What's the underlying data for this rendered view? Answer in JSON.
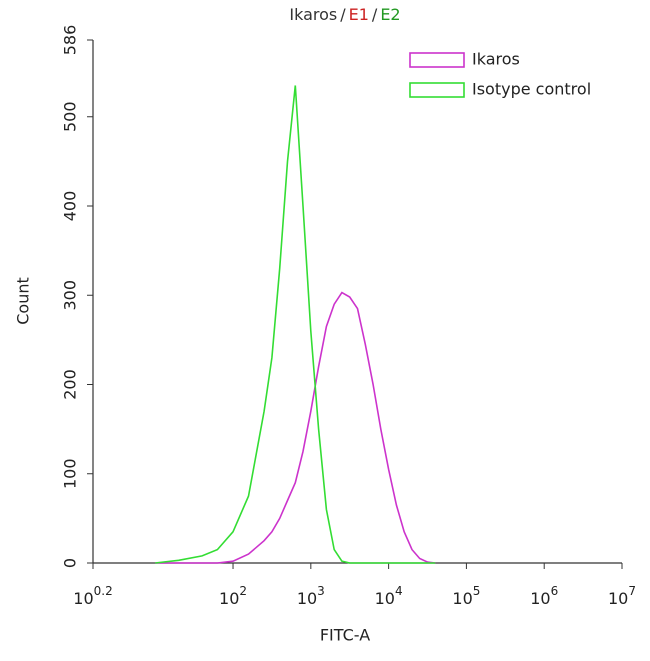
{
  "chart_data": {
    "type": "line",
    "title": [
      {
        "text": "Ikaros",
        "color": "#333333"
      },
      {
        "text": "/",
        "color": "#333333"
      },
      {
        "text": "E1",
        "color": "#cc2222"
      },
      {
        "text": "/",
        "color": "#333333"
      },
      {
        "text": "E2",
        "color": "#229922"
      }
    ],
    "x_label": "FITC-A",
    "y_label": "Count",
    "x_scale": "log",
    "x": [
      10,
      20,
      40,
      63,
      100,
      158,
      251,
      316,
      398,
      501,
      631,
      794,
      1000,
      1259,
      1585,
      1995,
      2512,
      3162,
      3981,
      5012,
      6310,
      7943,
      10000,
      12589,
      15849,
      19953,
      25119,
      31623,
      39811
    ],
    "series": [
      {
        "name": "Ikaros",
        "color": "#cc33cc",
        "values": [
          0,
          0,
          0,
          0,
          2,
          10,
          25,
          35,
          50,
          70,
          90,
          125,
          170,
          220,
          265,
          290,
          303,
          298,
          285,
          245,
          200,
          150,
          105,
          65,
          35,
          15,
          5,
          1,
          0
        ]
      },
      {
        "name": "Isotype control",
        "color": "#33dd33",
        "values": [
          0,
          3,
          8,
          15,
          35,
          75,
          170,
          230,
          330,
          450,
          535,
          400,
          260,
          150,
          60,
          15,
          2,
          0,
          0,
          0,
          0,
          0,
          0,
          0,
          0,
          0,
          0,
          0,
          0
        ]
      }
    ],
    "xlim": [
      1.5849,
      10000000
    ],
    "xticks": [
      {
        "value": 1.5849,
        "label": "10^0.2"
      },
      {
        "value": 100,
        "label": "10^2"
      },
      {
        "value": 1000,
        "label": "10^3"
      },
      {
        "value": 10000,
        "label": "10^4"
      },
      {
        "value": 100000,
        "label": "10^5"
      },
      {
        "value": 1000000,
        "label": "10^6"
      },
      {
        "value": 10000000,
        "label": "10^7"
      }
    ],
    "ylim": [
      0,
      586
    ],
    "yticks": [
      0,
      100,
      200,
      300,
      400,
      500,
      586
    ],
    "legend": "top-right"
  }
}
